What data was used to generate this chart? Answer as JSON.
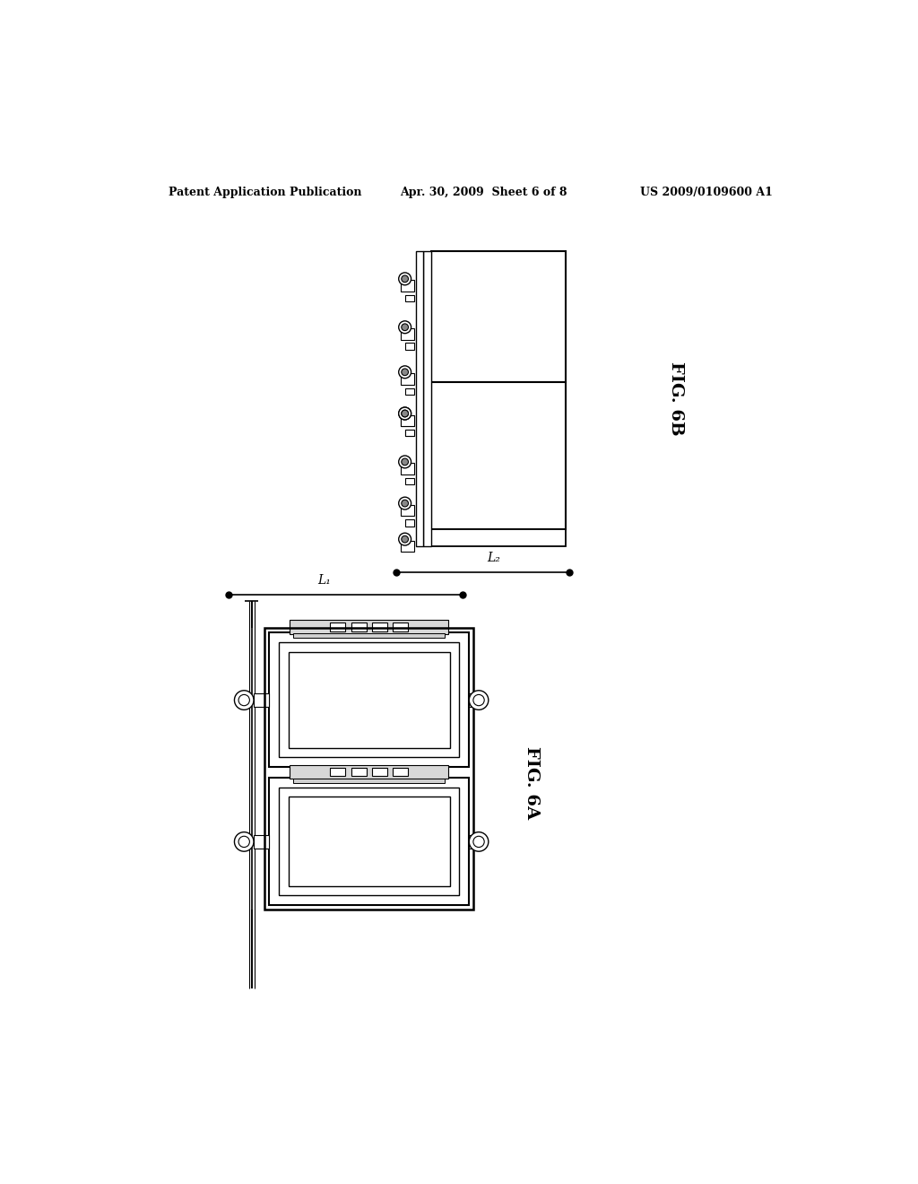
{
  "bg_color": "#ffffff",
  "header_left": "Patent Application Publication",
  "header_mid": "Apr. 30, 2009  Sheet 6 of 8",
  "header_right": "US 2009/0109600 A1",
  "fig6b_label": "FIG. 6B",
  "fig6a_label": "FIG. 6A",
  "L1_label": "L₁",
  "L2_label": "L₂"
}
